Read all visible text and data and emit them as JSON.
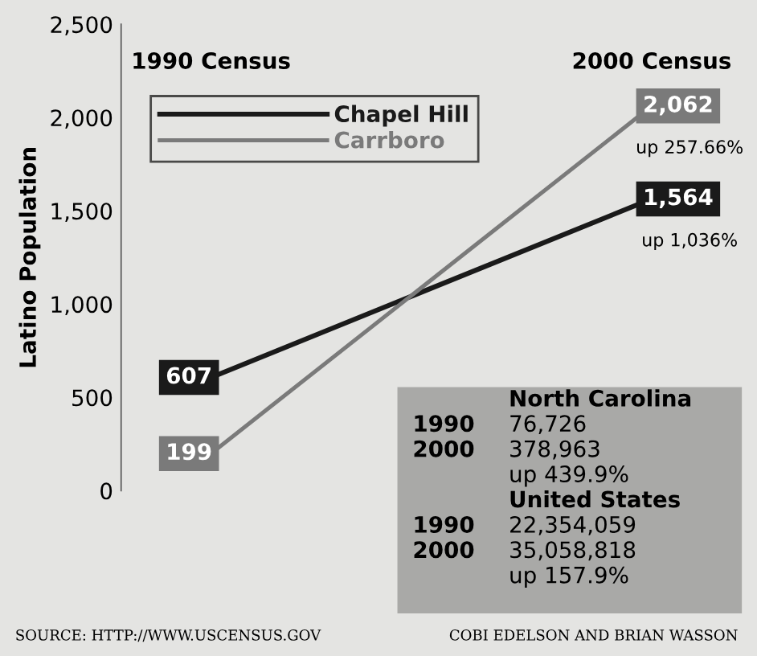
{
  "chart_data": {
    "type": "line",
    "ylabel": "Latino Population",
    "categories": [
      "1990 Census",
      "2000 Census"
    ],
    "series": [
      {
        "name": "Chapel Hill",
        "color": "#1a1a1a",
        "values": [
          607,
          1564
        ],
        "value_labels": [
          "607",
          "1,564"
        ]
      },
      {
        "name": "Carrboro",
        "color": "#7a7a7a",
        "values": [
          199,
          2062
        ],
        "value_labels": [
          "199",
          "2,062"
        ]
      }
    ],
    "ylim": [
      0,
      2500
    ],
    "yticks": [
      {
        "value": 0,
        "label": "0"
      },
      {
        "value": 500,
        "label": "500"
      },
      {
        "value": 1000,
        "label": "1,000"
      },
      {
        "value": 1500,
        "label": "1,500"
      },
      {
        "value": 2000,
        "label": "2,000"
      },
      {
        "value": 2500,
        "label": "2,500"
      }
    ],
    "annotations": [
      {
        "text": "up 257.66%",
        "x": "2000 Census",
        "y": 2062
      },
      {
        "text": "up 1,036%",
        "x": "2000 Census",
        "y": 1564
      },
      "North Carolina",
      "1990",
      "76,726",
      "2000",
      "378,963",
      "up 439.9%",
      "United States",
      "1990",
      "22,354,059",
      "2000",
      "35,058,818",
      "up 157.9%",
      "SOURCE: HTTP://WWW.USCENSUS.GOV",
      "COBI EDELSON AND BRIAN WASSON"
    ],
    "legend": "top left",
    "grid": false,
    "line_style": "solid"
  }
}
